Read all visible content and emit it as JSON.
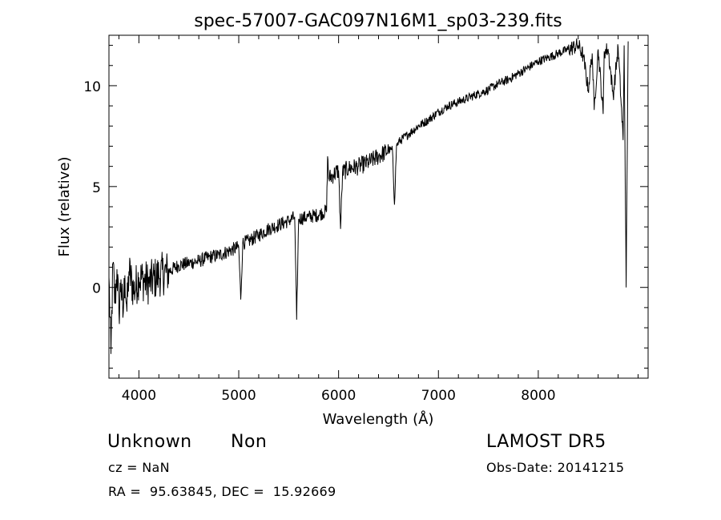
{
  "chart_data": {
    "type": "line",
    "title": "spec-57007-GAC097N16M1_sp03-239.fits",
    "xlabel": "Wavelength (Å)",
    "ylabel": "Flux (relative)",
    "xlim": [
      3700,
      9100
    ],
    "ylim": [
      -4.5,
      12.5
    ],
    "x_ticks": [
      4000,
      5000,
      6000,
      7000,
      8000
    ],
    "y_ticks": [
      0,
      5,
      10
    ],
    "series": [
      {
        "x": [
          3700,
          3720,
          3740,
          3760,
          3780,
          3800,
          3820,
          3840,
          3860,
          3880,
          3900,
          3950,
          4000,
          4100,
          4200,
          4300,
          4400,
          4500,
          4600,
          4700,
          4800,
          4900,
          5000,
          5020,
          5040,
          5100,
          5200,
          5300,
          5400,
          5500,
          5560,
          5580,
          5600,
          5700,
          5800,
          5880,
          5890,
          5900,
          5950,
          6000,
          6020,
          6040,
          6100,
          6200,
          6300,
          6400,
          6500,
          6540,
          6560,
          6580,
          6600,
          6700,
          6800,
          6900,
          7000,
          7100,
          7200,
          7300,
          7400,
          7500,
          7600,
          7700,
          7800,
          7900,
          8000,
          8100,
          8200,
          8300,
          8400,
          8450,
          8500,
          8540,
          8560,
          8600,
          8650,
          8660,
          8700,
          8750,
          8800,
          8850,
          8860,
          8880,
          8900
        ],
        "y": [
          0.5,
          -3.3,
          1.2,
          -0.8,
          0.9,
          -1.3,
          0.4,
          -1.5,
          0.6,
          -1.2,
          0.8,
          -0.2,
          0.5,
          0.2,
          0.6,
          0.8,
          1.1,
          1.2,
          1.3,
          1.5,
          1.6,
          1.8,
          2.0,
          -0.6,
          2.2,
          2.3,
          2.6,
          2.9,
          3.1,
          3.3,
          3.5,
          -1.6,
          3.4,
          3.5,
          3.6,
          3.8,
          6.5,
          5.4,
          5.6,
          5.8,
          2.9,
          5.7,
          5.9,
          6.0,
          6.2,
          6.5,
          6.8,
          6.8,
          4.1,
          7.0,
          7.2,
          7.6,
          8.0,
          8.3,
          8.7,
          9.0,
          9.2,
          9.4,
          9.6,
          9.8,
          10.1,
          10.3,
          10.6,
          10.9,
          11.2,
          11.4,
          11.6,
          11.8,
          12.0,
          11.5,
          9.8,
          11.6,
          8.8,
          11.8,
          8.6,
          11.7,
          11.8,
          9.5,
          11.9,
          7.3,
          12.0,
          0.0,
          12.2
        ]
      }
    ]
  },
  "info": {
    "class": "Unknown",
    "subclass": "Non",
    "survey": "LAMOST DR5",
    "cz": "cz = NaN",
    "obs_date": "Obs-Date: 20141215",
    "coords": "RA =  95.63845, DEC =  15.92669"
  }
}
